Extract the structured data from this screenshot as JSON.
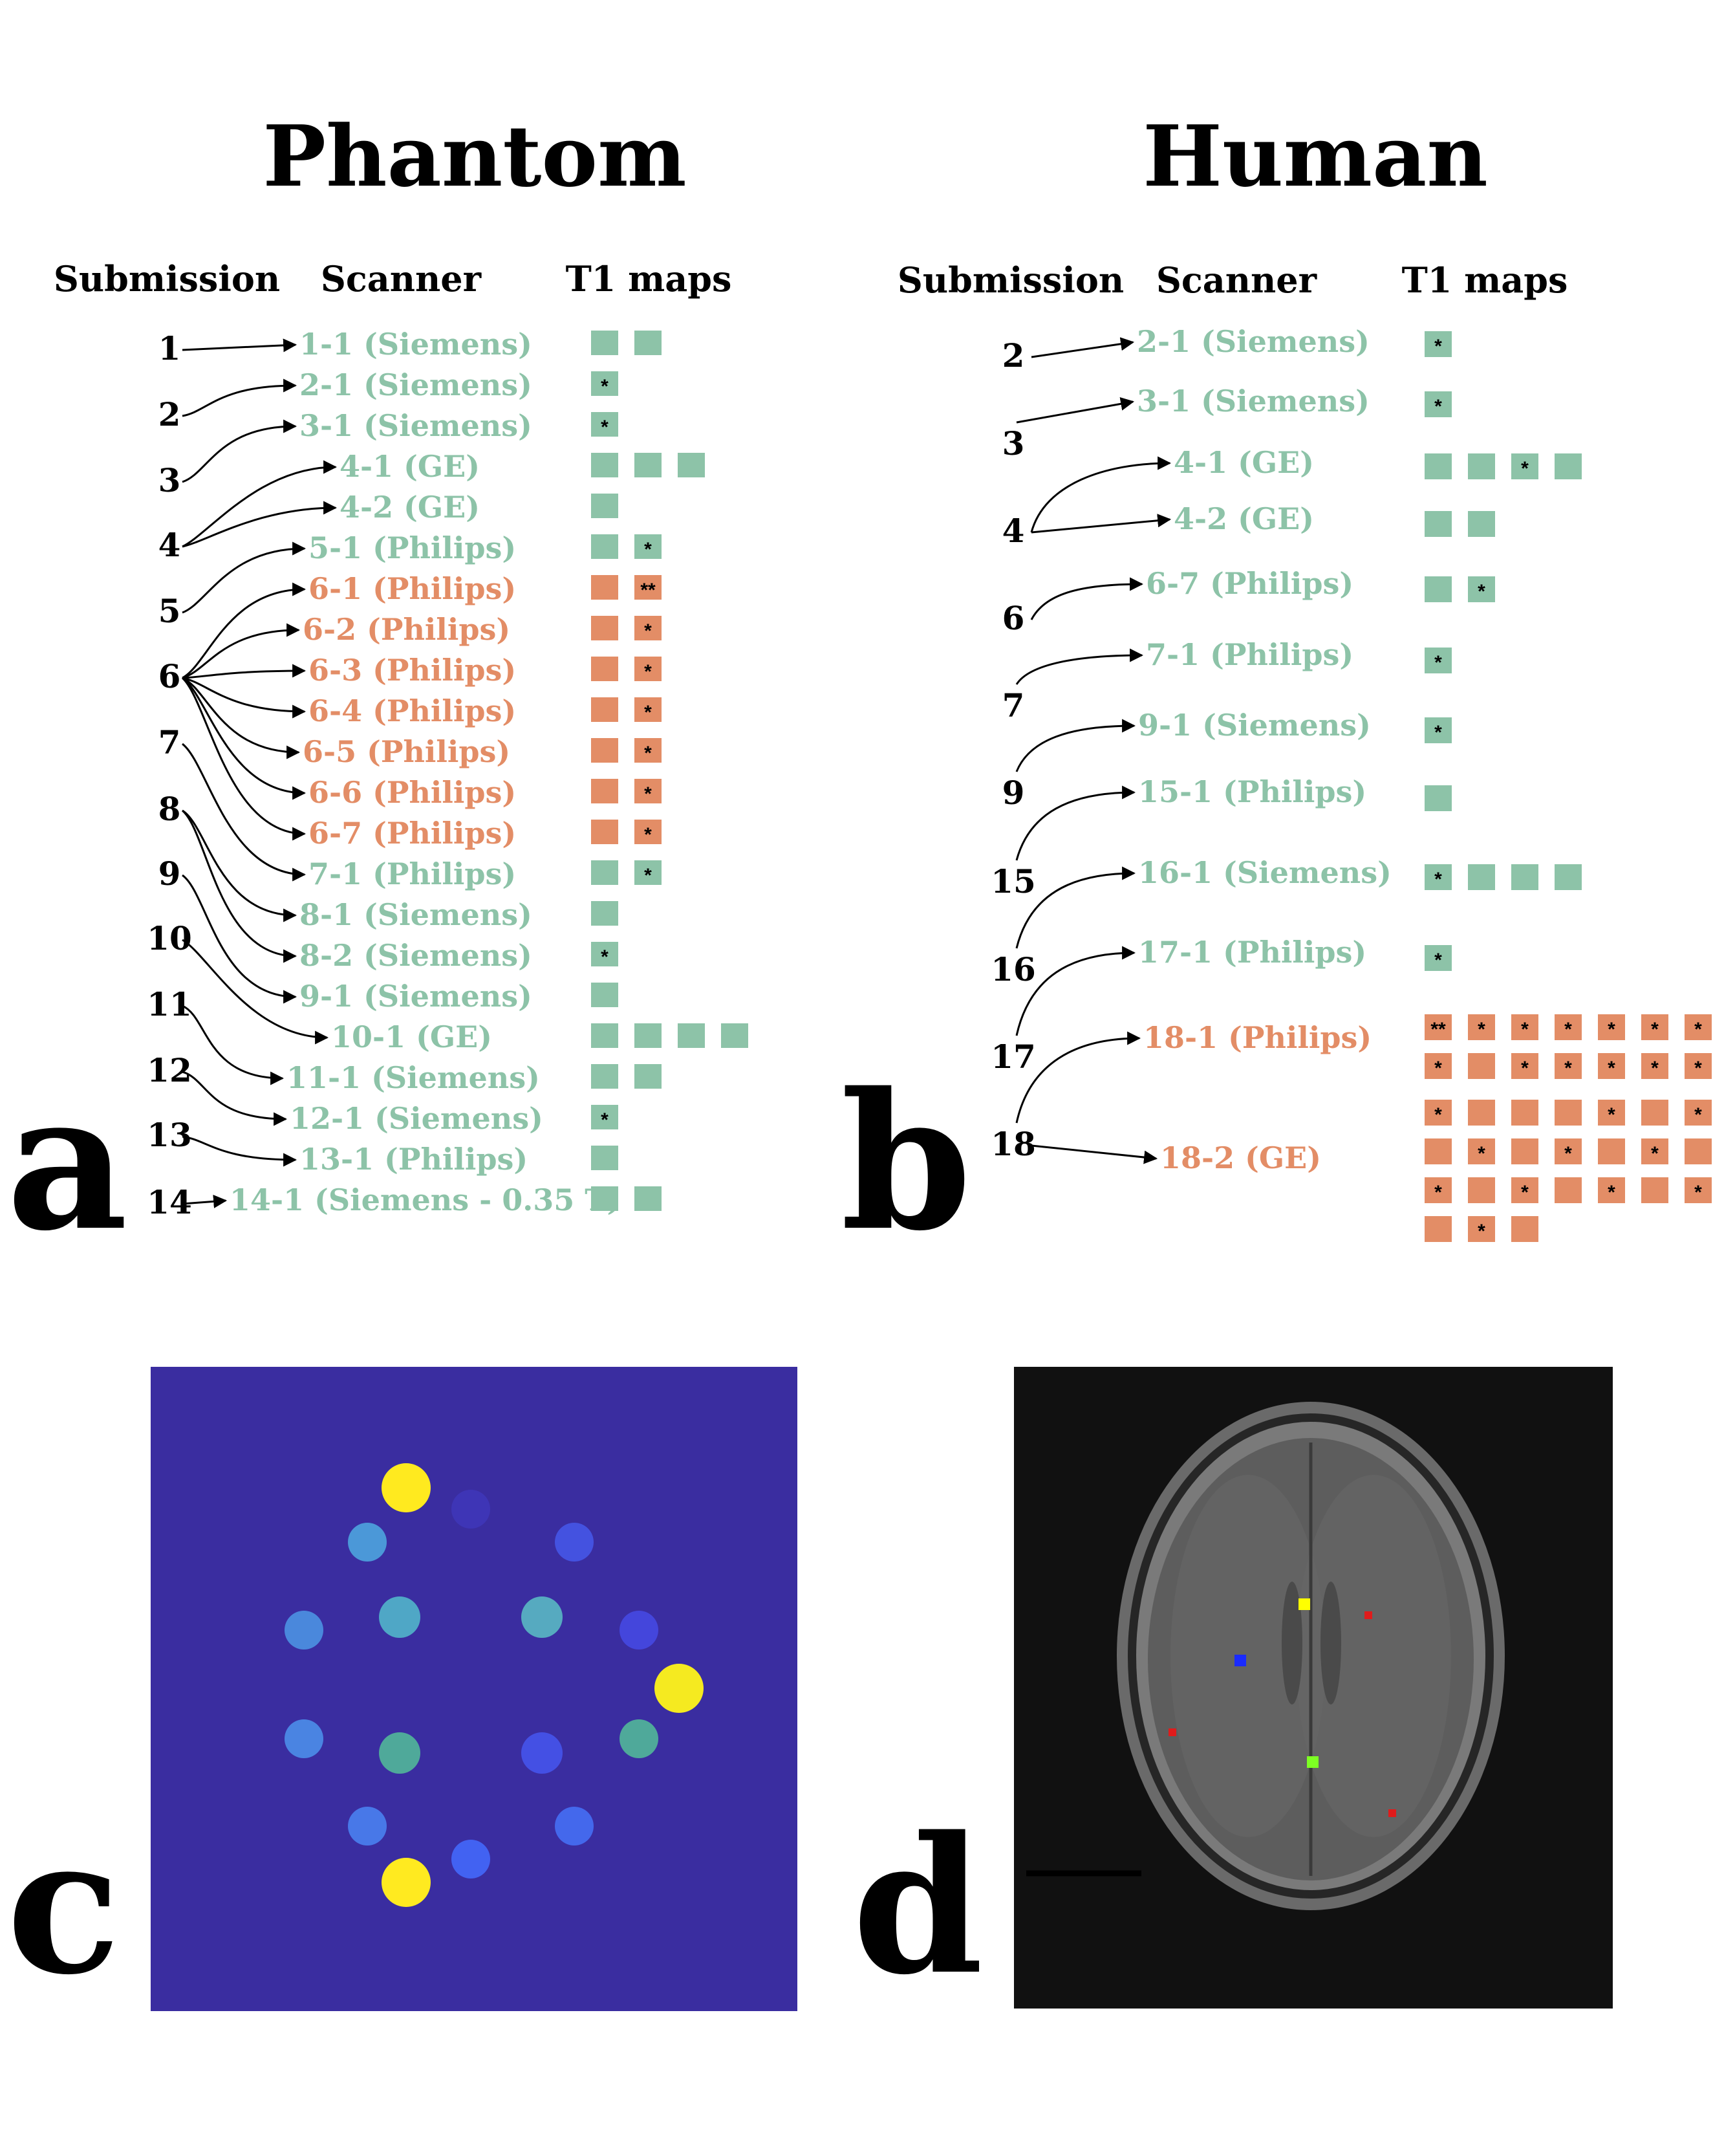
{
  "colors": {
    "green": "#8dc3a8",
    "orange": "#e38d66",
    "text": "#000000",
    "phantom_bg": "#3a2da0",
    "mri_bg": "#111111"
  },
  "panels": {
    "a": {
      "letter": "a",
      "title": "Phantom",
      "headers": {
        "submission": "Submission",
        "scanner": "Scanner",
        "t1maps": "T1 maps"
      },
      "submissions": [
        "1",
        "2",
        "3",
        "4",
        "5",
        "6",
        "7",
        "8",
        "9",
        "10",
        "11",
        "12",
        "13",
        "14"
      ],
      "rows": [
        {
          "label": "1-1 (Siemens)",
          "color": "green",
          "maps": [
            "",
            ""
          ]
        },
        {
          "label": "2-1 (Siemens)",
          "color": "green",
          "maps": [
            "*"
          ]
        },
        {
          "label": "3-1 (Siemens)",
          "color": "green",
          "maps": [
            "*"
          ]
        },
        {
          "label": "4-1 (GE)",
          "color": "green",
          "maps": [
            "",
            "",
            ""
          ]
        },
        {
          "label": "4-2 (GE)",
          "color": "green",
          "maps": [
            ""
          ]
        },
        {
          "label": "5-1 (Philips)",
          "color": "green",
          "maps": [
            "",
            "*"
          ]
        },
        {
          "label": "6-1 (Philips)",
          "color": "orange",
          "maps": [
            "",
            "**"
          ]
        },
        {
          "label": "6-2 (Philips)",
          "color": "orange",
          "maps": [
            "",
            "*"
          ]
        },
        {
          "label": "6-3 (Philips)",
          "color": "orange",
          "maps": [
            "",
            "*"
          ]
        },
        {
          "label": "6-4 (Philips)",
          "color": "orange",
          "maps": [
            "",
            "*"
          ]
        },
        {
          "label": "6-5 (Philips)",
          "color": "orange",
          "maps": [
            "",
            "*"
          ]
        },
        {
          "label": "6-6 (Philips)",
          "color": "orange",
          "maps": [
            "",
            "*"
          ]
        },
        {
          "label": "6-7 (Philips)",
          "color": "orange",
          "maps": [
            "",
            "*"
          ]
        },
        {
          "label": "7-1 (Philips)",
          "color": "green",
          "maps": [
            "",
            "*"
          ]
        },
        {
          "label": "8-1 (Siemens)",
          "color": "green",
          "maps": [
            ""
          ]
        },
        {
          "label": "8-2 (Siemens)",
          "color": "green",
          "maps": [
            "*"
          ]
        },
        {
          "label": "9-1 (Siemens)",
          "color": "green",
          "maps": [
            ""
          ]
        },
        {
          "label": "10-1 (GE)",
          "color": "green",
          "maps": [
            "",
            "",
            "",
            ""
          ]
        },
        {
          "label": "11-1 (Siemens)",
          "color": "green",
          "maps": [
            "",
            ""
          ]
        },
        {
          "label": "12-1 (Siemens)",
          "color": "green",
          "maps": [
            "*"
          ]
        },
        {
          "label": "13-1 (Philips)",
          "color": "green",
          "maps": [
            ""
          ]
        },
        {
          "label": "14-1 (Siemens - 0.35 T)",
          "color": "green",
          "maps": [
            "",
            ""
          ]
        }
      ]
    },
    "b": {
      "letter": "b",
      "title": "Human",
      "headers": {
        "submission": "Submission",
        "scanner": "Scanner",
        "t1maps": "T1 maps"
      },
      "submissions": [
        "2",
        "3",
        "4",
        "6",
        "7",
        "9",
        "15",
        "16",
        "17",
        "18"
      ],
      "rows": [
        {
          "label": "2-1 (Siemens)",
          "color": "green",
          "maps": [
            [
              "*"
            ]
          ]
        },
        {
          "label": "3-1 (Siemens)",
          "color": "green",
          "maps": [
            [
              "*"
            ]
          ]
        },
        {
          "label": "4-1 (GE)",
          "color": "green",
          "maps": [
            [
              "",
              "",
              "*",
              ""
            ]
          ]
        },
        {
          "label": "4-2 (GE)",
          "color": "green",
          "maps": [
            [
              "",
              ""
            ]
          ]
        },
        {
          "label": "6-7 (Philips)",
          "color": "green",
          "maps": [
            [
              "",
              "*"
            ]
          ]
        },
        {
          "label": "7-1 (Philips)",
          "color": "green",
          "maps": [
            [
              "*"
            ]
          ]
        },
        {
          "label": "9-1 (Siemens)",
          "color": "green",
          "maps": [
            [
              "*"
            ]
          ]
        },
        {
          "label": "15-1 (Philips)",
          "color": "green",
          "maps": [
            [
              ""
            ]
          ]
        },
        {
          "label": "16-1 (Siemens)",
          "color": "green",
          "maps": [
            [
              "*",
              "",
              "",
              ""
            ]
          ]
        },
        {
          "label": "17-1 (Philips)",
          "color": "green",
          "maps": [
            [
              "*"
            ]
          ]
        },
        {
          "label": "18-1 (Philips)",
          "color": "orange",
          "maps": [
            [
              "**",
              "*",
              "*",
              "*",
              "*",
              "*",
              "*"
            ],
            [
              "*",
              "",
              "*",
              "*",
              "*",
              "*",
              "*"
            ]
          ]
        },
        {
          "label": "18-2 (GE)",
          "color": "orange",
          "maps": [
            [
              "*",
              "",
              "",
              "",
              "*",
              "",
              "*"
            ],
            [
              "",
              "*",
              "",
              "*",
              "",
              "*",
              ""
            ],
            [
              "*",
              "",
              "*",
              "",
              "*",
              "",
              "*"
            ],
            [
              "",
              "*",
              ""
            ]
          ]
        }
      ]
    },
    "c": {
      "letter": "c",
      "spheres": [
        {
          "color": "#ffea1f"
        },
        {
          "color": "#3e35b6"
        },
        {
          "color": "#4b98d8"
        },
        {
          "color": "#4452e0"
        },
        {
          "color": "#4fa7c6"
        },
        {
          "color": "#56aac0"
        },
        {
          "color": "#4a88dc"
        },
        {
          "color": "#4446dc"
        },
        {
          "color": "#f5ea20"
        },
        {
          "color": "#4a84e2"
        },
        {
          "color": "#4fa99a"
        },
        {
          "color": "#4fa99a"
        },
        {
          "color": "#4450e4"
        },
        {
          "color": "#4878e8"
        },
        {
          "color": "#4468ec"
        },
        {
          "color": "#4262f2"
        },
        {
          "color": "#ffea20"
        }
      ]
    },
    "d": {
      "letter": "d",
      "rois": [
        {
          "color": "#ffff00"
        },
        {
          "color": "#e01b1b"
        },
        {
          "color": "#1a2bff"
        },
        {
          "color": "#e01b1b"
        },
        {
          "color": "#7dff23"
        },
        {
          "color": "#e01b1b"
        }
      ]
    }
  }
}
